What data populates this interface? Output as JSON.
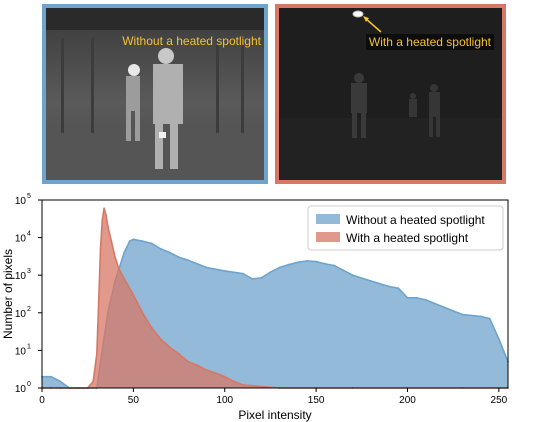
{
  "panels": {
    "left_caption": "Without a heated spotlight",
    "right_caption": "With a heated spotlight"
  },
  "colors": {
    "blue": "#6fa3cc",
    "red": "#d77766",
    "caption": "#f4c230"
  },
  "chart_data": {
    "type": "area",
    "xlabel": "Pixel intensity",
    "ylabel": "Number of pixels",
    "xlim": [
      0,
      255
    ],
    "ylim_exp": [
      0,
      5
    ],
    "yscale": "log",
    "legend_position": "upper right",
    "x_ticks": [
      "0",
      "50",
      "100",
      "150",
      "200",
      "250"
    ],
    "y_ticks": [
      {
        "base": "10",
        "exp": "0"
      },
      {
        "base": "10",
        "exp": "1"
      },
      {
        "base": "10",
        "exp": "2"
      },
      {
        "base": "10",
        "exp": "3"
      },
      {
        "base": "10",
        "exp": "4"
      },
      {
        "base": "10",
        "exp": "5"
      }
    ],
    "series": [
      {
        "name": "Without a heated spotlight",
        "color": "#6fa3cc",
        "x": [
          0,
          5,
          10,
          15,
          20,
          25,
          30,
          33,
          36,
          40,
          45,
          48,
          50,
          55,
          60,
          65,
          70,
          75,
          80,
          90,
          100,
          110,
          115,
          120,
          125,
          130,
          135,
          140,
          145,
          150,
          155,
          160,
          170,
          180,
          190,
          195,
          200,
          205,
          210,
          220,
          230,
          240,
          245,
          250,
          255
        ],
        "values": [
          2,
          2,
          1.5,
          1,
          1,
          1,
          1,
          10,
          100,
          700,
          4000,
          8000,
          9000,
          8000,
          7000,
          5000,
          4000,
          3000,
          2500,
          1600,
          1300,
          1100,
          800,
          850,
          1200,
          1600,
          1900,
          2200,
          2400,
          2300,
          2000,
          1800,
          1000,
          700,
          500,
          450,
          250,
          250,
          220,
          140,
          90,
          80,
          70,
          20,
          5
        ]
      },
      {
        "name": "With a heated spotlight",
        "color": "#d77766",
        "x": [
          0,
          5,
          10,
          20,
          25,
          28,
          30,
          31,
          32,
          33,
          34,
          35,
          36,
          38,
          40,
          42,
          45,
          50,
          55,
          60,
          65,
          70,
          75,
          80,
          85,
          90,
          95,
          100,
          105,
          110,
          130,
          150,
          170,
          200,
          230,
          255
        ],
        "values": [
          1,
          1,
          1,
          1,
          1,
          1.5,
          8,
          200,
          5000,
          30000,
          60000,
          40000,
          20000,
          8000,
          3000,
          1500,
          800,
          300,
          100,
          40,
          20,
          12,
          8,
          5,
          4,
          3,
          2.5,
          2,
          1.5,
          1.2,
          1,
          1,
          1,
          1,
          1,
          1
        ]
      }
    ]
  }
}
